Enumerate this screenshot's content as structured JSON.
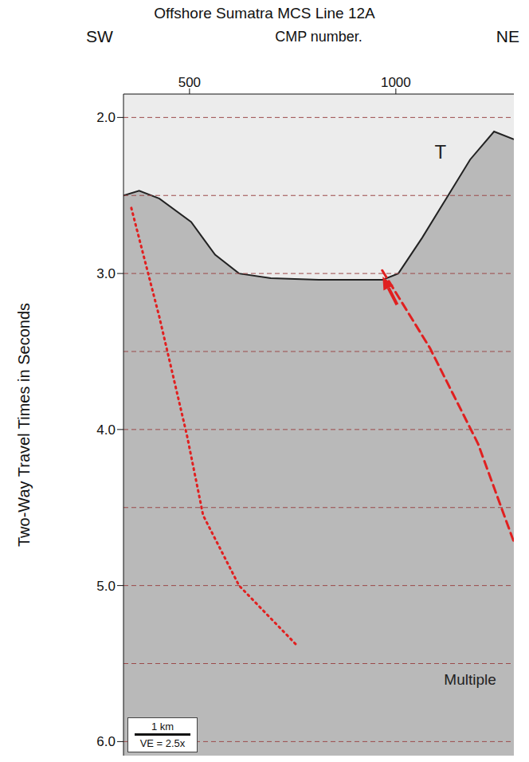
{
  "chart_data": {
    "type": "line",
    "title": "Offshore Sumatra MCS Line 12A",
    "x_label": "CMP number.",
    "y_label": "Two-Way Travel Times in Seconds",
    "direction_labels": [
      "SW",
      "NE"
    ],
    "xlim": [
      340,
      1286
    ],
    "xticks": [
      500,
      1000
    ],
    "ylim": [
      1.85,
      6.09
    ],
    "yticks": [
      {
        "value": 2,
        "label": "2.0"
      },
      {
        "value": 3,
        "label": "3.0"
      },
      {
        "value": 4,
        "label": "4.0"
      },
      {
        "value": 5,
        "label": "5.0"
      },
      {
        "value": 6,
        "label": "6.0"
      }
    ],
    "reference_lines": [
      2,
      2.5,
      3,
      3.5,
      4,
      4.5,
      5,
      5.5,
      6
    ],
    "seafloor": {
      "x": [
        340,
        378,
        427,
        504,
        562,
        620,
        697,
        813,
        968,
        1006,
        1064,
        1122,
        1180,
        1238,
        1286
      ],
      "y": [
        2.5,
        2.47,
        2.52,
        2.67,
        2.88,
        3.0,
        3.03,
        3.04,
        3.04,
        3.0,
        2.77,
        2.52,
        2.27,
        2.09,
        2.14
      ],
      "color": "#222222"
    },
    "faults": [
      {
        "x": [
          359,
          427,
          494,
          533,
          620,
          759
        ],
        "y": [
          2.58,
          3.28,
          4.04,
          4.55,
          5.0,
          5.38
        ],
        "color": "#e02020",
        "line_style": "dotted"
      },
      {
        "x": [
          967,
          1083,
          1199,
          1286
        ],
        "y": [
          2.98,
          3.48,
          4.09,
          4.72
        ],
        "color": "#e02020",
        "line_style": "dashed"
      }
    ],
    "arrow": {
      "x": [
        1003,
        968
      ],
      "y": [
        3.2,
        3.02
      ],
      "color": "#e02020"
    },
    "annotations": [
      {
        "text": "T",
        "x": 1108,
        "y": 2.22
      },
      {
        "text": "Multiple",
        "x": 1180,
        "y": 5.6
      }
    ],
    "scale_bar": {
      "label": "1 km",
      "note": "VE = 2.5x"
    }
  }
}
